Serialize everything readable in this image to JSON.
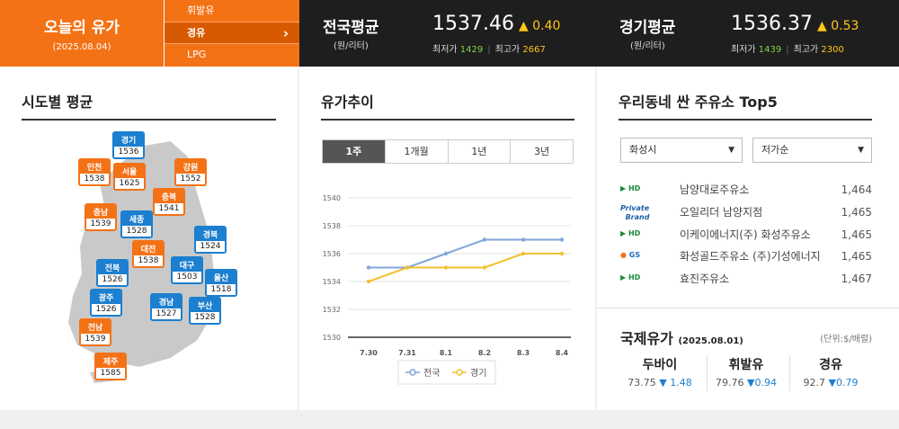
{
  "today": {
    "title": "오늘의 유가",
    "date": "(2025.08.04)"
  },
  "fuel_types": [
    "휘발유",
    "경유",
    "LPG"
  ],
  "selected_fuel": "경유",
  "national": {
    "name": "전국평균",
    "unit": "(원/리터)",
    "price": "1537.46",
    "change": "0.40",
    "min_label": "최저가",
    "min": "1429",
    "max_label": "최고가",
    "max": "2667"
  },
  "gyeonggi": {
    "name": "경기평균",
    "unit": "(원/리터)",
    "price": "1536.37",
    "change": "0.53",
    "min_label": "최저가",
    "min": "1439",
    "max_label": "최고가",
    "max": "2300"
  },
  "regions": {
    "title": "시도별 평균",
    "items": [
      {
        "name": "경기",
        "value": "1536",
        "color": "blue"
      },
      {
        "name": "인천",
        "value": "1538",
        "color": "orange"
      },
      {
        "name": "서울",
        "value": "1625",
        "color": "orange"
      },
      {
        "name": "강원",
        "value": "1552",
        "color": "orange"
      },
      {
        "name": "충북",
        "value": "1541",
        "color": "orange"
      },
      {
        "name": "충남",
        "value": "1539",
        "color": "orange"
      },
      {
        "name": "세종",
        "value": "1528",
        "color": "blue"
      },
      {
        "name": "대전",
        "value": "1538",
        "color": "orange"
      },
      {
        "name": "경북",
        "value": "1524",
        "color": "blue"
      },
      {
        "name": "전북",
        "value": "1526",
        "color": "blue"
      },
      {
        "name": "대구",
        "value": "1503",
        "color": "blue"
      },
      {
        "name": "울산",
        "value": "1518",
        "color": "blue"
      },
      {
        "name": "광주",
        "value": "1526",
        "color": "blue"
      },
      {
        "name": "경남",
        "value": "1527",
        "color": "blue"
      },
      {
        "name": "부산",
        "value": "1528",
        "color": "blue"
      },
      {
        "name": "전남",
        "value": "1539",
        "color": "orange"
      },
      {
        "name": "제주",
        "value": "1585",
        "color": "orange"
      }
    ]
  },
  "trend": {
    "title": "유가추이",
    "tabs": [
      "1주",
      "1개월",
      "1년",
      "3년"
    ],
    "active_tab": "1주"
  },
  "chart_data": {
    "type": "line",
    "x": [
      "7.30",
      "7.31",
      "8.1",
      "8.2",
      "8.3",
      "8.4"
    ],
    "series": [
      {
        "name": "전국",
        "values": [
          1535,
          1535,
          1536,
          1537,
          1537,
          1537
        ],
        "color": "#7fa6d9"
      },
      {
        "name": "경기",
        "values": [
          1534,
          1535,
          1535,
          1535,
          1536,
          1536
        ],
        "color": "#f2c12e"
      }
    ],
    "yticks": [
      "1540",
      "1538",
      "1536",
      "1534",
      "1532",
      "1530"
    ],
    "ylim": [
      1530,
      1540
    ],
    "grid": true,
    "legend": "bottom"
  },
  "stations": {
    "title": "우리동네 싼 주유소 Top5",
    "region_select": "화성시",
    "sort_select": "저가순",
    "items": [
      {
        "brand": "HD HYUNDAI OILBANK",
        "name": "남양대로주유소",
        "price": "1,464"
      },
      {
        "brand": "Private Brand",
        "name": "오일리더 남양지점",
        "price": "1,465"
      },
      {
        "brand": "HD HYUNDAI OILBANK",
        "name": "이케이에너지(주) 화성주유소",
        "price": "1,465"
      },
      {
        "brand": "GS칼텍스",
        "name": "화성골드주유소 (주)기성에너지",
        "price": "1,465"
      },
      {
        "brand": "HD HYUNDAI OILBANK",
        "name": "효진주유소",
        "price": "1,467"
      }
    ]
  },
  "intl": {
    "title": "국제유가",
    "date": "(2025.08.01)",
    "unit": "(단위:$/배럴)",
    "items": [
      {
        "name": "두바이",
        "price": "73.75",
        "change": "1.48"
      },
      {
        "name": "휘발유",
        "price": "79.76",
        "change": "0.94"
      },
      {
        "name": "경유",
        "price": "92.7",
        "change": "0.79"
      }
    ]
  },
  "colors": {
    "orange": "#f47216",
    "blue": "#1c7fcf",
    "header_bg": "#1e1e1e",
    "up": "#ffc61a",
    "down": "#1c7fcf"
  }
}
